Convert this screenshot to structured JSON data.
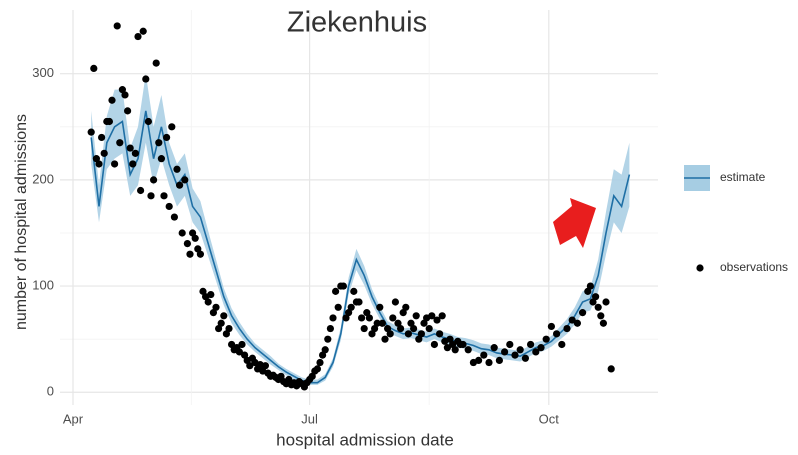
{
  "chart_data": {
    "type": "line",
    "title": "Ziekenhuis",
    "title_color": "#d4832a",
    "x_label": "hospital admission date",
    "y_label": "number of hospital admissions",
    "xlim": [
      -5,
      225
    ],
    "xticks": [
      {
        "value": 0,
        "label": "Apr"
      },
      {
        "value": 91,
        "label": "Jul"
      },
      {
        "value": 183,
        "label": "Oct"
      }
    ],
    "ylim": [
      -12,
      360
    ],
    "yticks": [
      0,
      100,
      200,
      300
    ],
    "grid": true,
    "legend": "right",
    "series": [
      {
        "name": "estimate",
        "color": "#1f6fa5",
        "band_color": "#a6cde3",
        "x": [
          7,
          10,
          13,
          16,
          19,
          22,
          25,
          28,
          31,
          34,
          37,
          40,
          43,
          46,
          49,
          52,
          55,
          58,
          61,
          64,
          67,
          70,
          73,
          76,
          79,
          82,
          85,
          88,
          91,
          94,
          97,
          100,
          103,
          106,
          109,
          112,
          115,
          118,
          121,
          124,
          127,
          130,
          133,
          136,
          139,
          142,
          145,
          148,
          151,
          154,
          157,
          160,
          163,
          166,
          169,
          172,
          175,
          178,
          181,
          184,
          187,
          190,
          193,
          196,
          199,
          202,
          205,
          208,
          211,
          214
        ],
        "values": [
          240,
          175,
          235,
          250,
          255,
          205,
          220,
          265,
          220,
          250,
          215,
          195,
          205,
          175,
          165,
          140,
          115,
          90,
          72,
          60,
          50,
          42,
          36,
          30,
          24,
          19,
          15,
          11,
          9,
          9,
          14,
          28,
          55,
          100,
          125,
          110,
          90,
          75,
          62,
          58,
          55,
          56,
          54,
          52,
          55,
          52,
          50,
          47,
          46,
          44,
          41,
          40,
          37,
          36,
          35,
          34,
          38,
          42,
          44,
          48,
          55,
          62,
          72,
          85,
          88,
          110,
          150,
          185,
          175,
          205
        ],
        "lower": [
          215,
          160,
          210,
          220,
          225,
          185,
          195,
          235,
          195,
          220,
          195,
          175,
          185,
          160,
          150,
          128,
          105,
          82,
          65,
          54,
          45,
          38,
          32,
          26,
          21,
          16,
          12,
          9,
          7,
          7,
          11,
          24,
          49,
          92,
          115,
          101,
          83,
          69,
          57,
          53,
          50,
          51,
          49,
          47,
          50,
          47,
          45,
          42,
          41,
          39,
          36,
          35,
          32,
          31,
          30,
          29,
          33,
          37,
          39,
          43,
          49,
          55,
          64,
          75,
          77,
          95,
          130,
          160,
          150,
          175
        ],
        "upper": [
          265,
          195,
          260,
          285,
          285,
          230,
          250,
          300,
          250,
          280,
          235,
          215,
          225,
          192,
          180,
          152,
          125,
          98,
          79,
          66,
          55,
          46,
          40,
          34,
          27,
          22,
          18,
          14,
          12,
          12,
          17,
          32,
          61,
          108,
          135,
          119,
          97,
          81,
          67,
          63,
          60,
          61,
          59,
          57,
          60,
          57,
          55,
          52,
          51,
          49,
          46,
          45,
          42,
          41,
          40,
          39,
          43,
          47,
          49,
          53,
          61,
          69,
          80,
          95,
          99,
          125,
          170,
          210,
          205,
          235
        ]
      },
      {
        "name": "observations",
        "color": "#000000",
        "x": [
          7,
          8,
          9,
          10,
          11,
          12,
          13,
          14,
          15,
          16,
          17,
          18,
          19,
          20,
          21,
          22,
          23,
          24,
          25,
          26,
          27,
          28,
          29,
          30,
          31,
          32,
          33,
          34,
          35,
          36,
          37,
          38,
          39,
          40,
          41,
          42,
          43,
          44,
          45,
          46,
          47,
          48,
          49,
          50,
          51,
          52,
          53,
          54,
          55,
          56,
          57,
          58,
          59,
          60,
          61,
          62,
          63,
          64,
          65,
          66,
          67,
          68,
          69,
          70,
          71,
          72,
          73,
          74,
          75,
          76,
          77,
          78,
          79,
          80,
          81,
          82,
          83,
          84,
          85,
          86,
          87,
          88,
          89,
          90,
          91,
          92,
          93,
          94,
          95,
          96,
          97,
          98,
          99,
          100,
          101,
          102,
          103,
          104,
          105,
          106,
          107,
          108,
          109,
          110,
          111,
          112,
          113,
          114,
          115,
          116,
          117,
          118,
          119,
          120,
          121,
          122,
          123,
          124,
          125,
          126,
          127,
          128,
          129,
          130,
          131,
          132,
          133,
          134,
          135,
          136,
          137,
          138,
          139,
          140,
          141,
          142,
          143,
          144,
          145,
          146,
          147,
          148,
          149,
          150,
          152,
          154,
          156,
          158,
          160,
          162,
          164,
          166,
          168,
          170,
          172,
          174,
          176,
          178,
          180,
          182,
          184,
          186,
          188,
          190,
          192,
          194,
          196,
          198,
          199,
          200,
          201,
          202,
          203,
          204,
          205,
          207
        ],
        "values": [
          245,
          305,
          220,
          215,
          240,
          225,
          255,
          255,
          275,
          215,
          345,
          235,
          285,
          280,
          265,
          230,
          215,
          225,
          335,
          190,
          340,
          295,
          255,
          185,
          200,
          310,
          235,
          220,
          185,
          240,
          175,
          250,
          165,
          210,
          195,
          150,
          200,
          140,
          130,
          150,
          145,
          135,
          130,
          95,
          90,
          85,
          92,
          75,
          80,
          60,
          65,
          72,
          55,
          60,
          45,
          40,
          42,
          38,
          45,
          35,
          30,
          25,
          32,
          28,
          22,
          26,
          20,
          25,
          18,
          15,
          16,
          14,
          12,
          15,
          10,
          8,
          12,
          7,
          9,
          6,
          10,
          8,
          5,
          9,
          12,
          15,
          20,
          22,
          28,
          35,
          40,
          50,
          60,
          70,
          95,
          80,
          100,
          100,
          70,
          75,
          80,
          95,
          85,
          85,
          70,
          60,
          75,
          70,
          55,
          60,
          65,
          80,
          65,
          50,
          60,
          55,
          70,
          85,
          65,
          60,
          75,
          80,
          55,
          65,
          60,
          72,
          50,
          55,
          65,
          70,
          60,
          72,
          45,
          68,
          55,
          72,
          48,
          42,
          50,
          45,
          40,
          48,
          45,
          45,
          40,
          28,
          30,
          35,
          28,
          42,
          30,
          38,
          45,
          35,
          40,
          32,
          45,
          38,
          42,
          50,
          62,
          55,
          45,
          60,
          68,
          65,
          75,
          95,
          100,
          85,
          90,
          80,
          72,
          65,
          85,
          22
        ]
      }
    ]
  }
}
